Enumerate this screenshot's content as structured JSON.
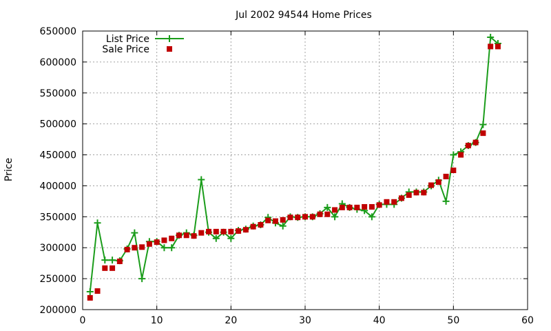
{
  "chart_data": {
    "type": "line",
    "title": "Jul 2002 94544 Home Prices",
    "xlabel": "",
    "ylabel": "Price",
    "xlim": [
      0,
      60
    ],
    "ylim": [
      200000,
      650000
    ],
    "xticks": [
      0,
      10,
      20,
      30,
      40,
      50,
      60
    ],
    "yticks": [
      200000,
      250000,
      300000,
      350000,
      400000,
      450000,
      500000,
      550000,
      600000,
      650000
    ],
    "grid": true,
    "legend_position": "top-left",
    "series": [
      {
        "name": "List Price",
        "style": "line-points",
        "color": "#1a9c1a",
        "x": [
          1,
          2,
          3,
          4,
          5,
          6,
          7,
          8,
          9,
          10,
          11,
          12,
          13,
          14,
          15,
          16,
          17,
          18,
          19,
          20,
          21,
          22,
          23,
          24,
          25,
          26,
          27,
          28,
          29,
          30,
          31,
          32,
          33,
          34,
          35,
          36,
          37,
          38,
          39,
          40,
          41,
          42,
          43,
          44,
          45,
          46,
          47,
          48,
          49,
          50,
          51,
          52,
          53,
          54,
          55,
          56
        ],
        "values": [
          229000,
          340000,
          280000,
          280000,
          279000,
          298000,
          324000,
          250000,
          310000,
          310000,
          300000,
          300000,
          320000,
          324000,
          320000,
          410000,
          325000,
          315000,
          325000,
          315000,
          328000,
          330000,
          335000,
          337000,
          349000,
          340000,
          335000,
          350000,
          349000,
          350000,
          350000,
          355000,
          365000,
          350000,
          371000,
          365000,
          362000,
          360000,
          350000,
          370000,
          370000,
          370000,
          380000,
          390000,
          390000,
          390000,
          400000,
          409000,
          375000,
          450000,
          455000,
          465000,
          470000,
          499000,
          640000,
          630000
        ]
      },
      {
        "name": "Sale Price",
        "style": "points",
        "color": "#c00000",
        "x": [
          1,
          2,
          3,
          4,
          5,
          6,
          7,
          8,
          9,
          10,
          11,
          12,
          13,
          14,
          15,
          16,
          17,
          18,
          19,
          20,
          21,
          22,
          23,
          24,
          25,
          26,
          27,
          28,
          29,
          30,
          31,
          32,
          33,
          34,
          35,
          36,
          37,
          38,
          39,
          40,
          41,
          42,
          43,
          44,
          45,
          46,
          47,
          48,
          49,
          50,
          51,
          52,
          53,
          54,
          55,
          56
        ],
        "values": [
          219000,
          230000,
          267000,
          267000,
          278000,
          297000,
          300000,
          301000,
          306000,
          309000,
          312000,
          315000,
          320000,
          320000,
          319000,
          324000,
          326000,
          326000,
          326000,
          326000,
          327000,
          329000,
          334000,
          337000,
          344000,
          343000,
          345000,
          349000,
          349000,
          350000,
          350000,
          354000,
          354000,
          361000,
          365000,
          365000,
          365000,
          366000,
          366000,
          369000,
          374000,
          374000,
          380000,
          385000,
          389000,
          389000,
          401000,
          406000,
          415000,
          425000,
          450000,
          465000,
          470000,
          485000,
          625000,
          625000
        ]
      }
    ]
  }
}
